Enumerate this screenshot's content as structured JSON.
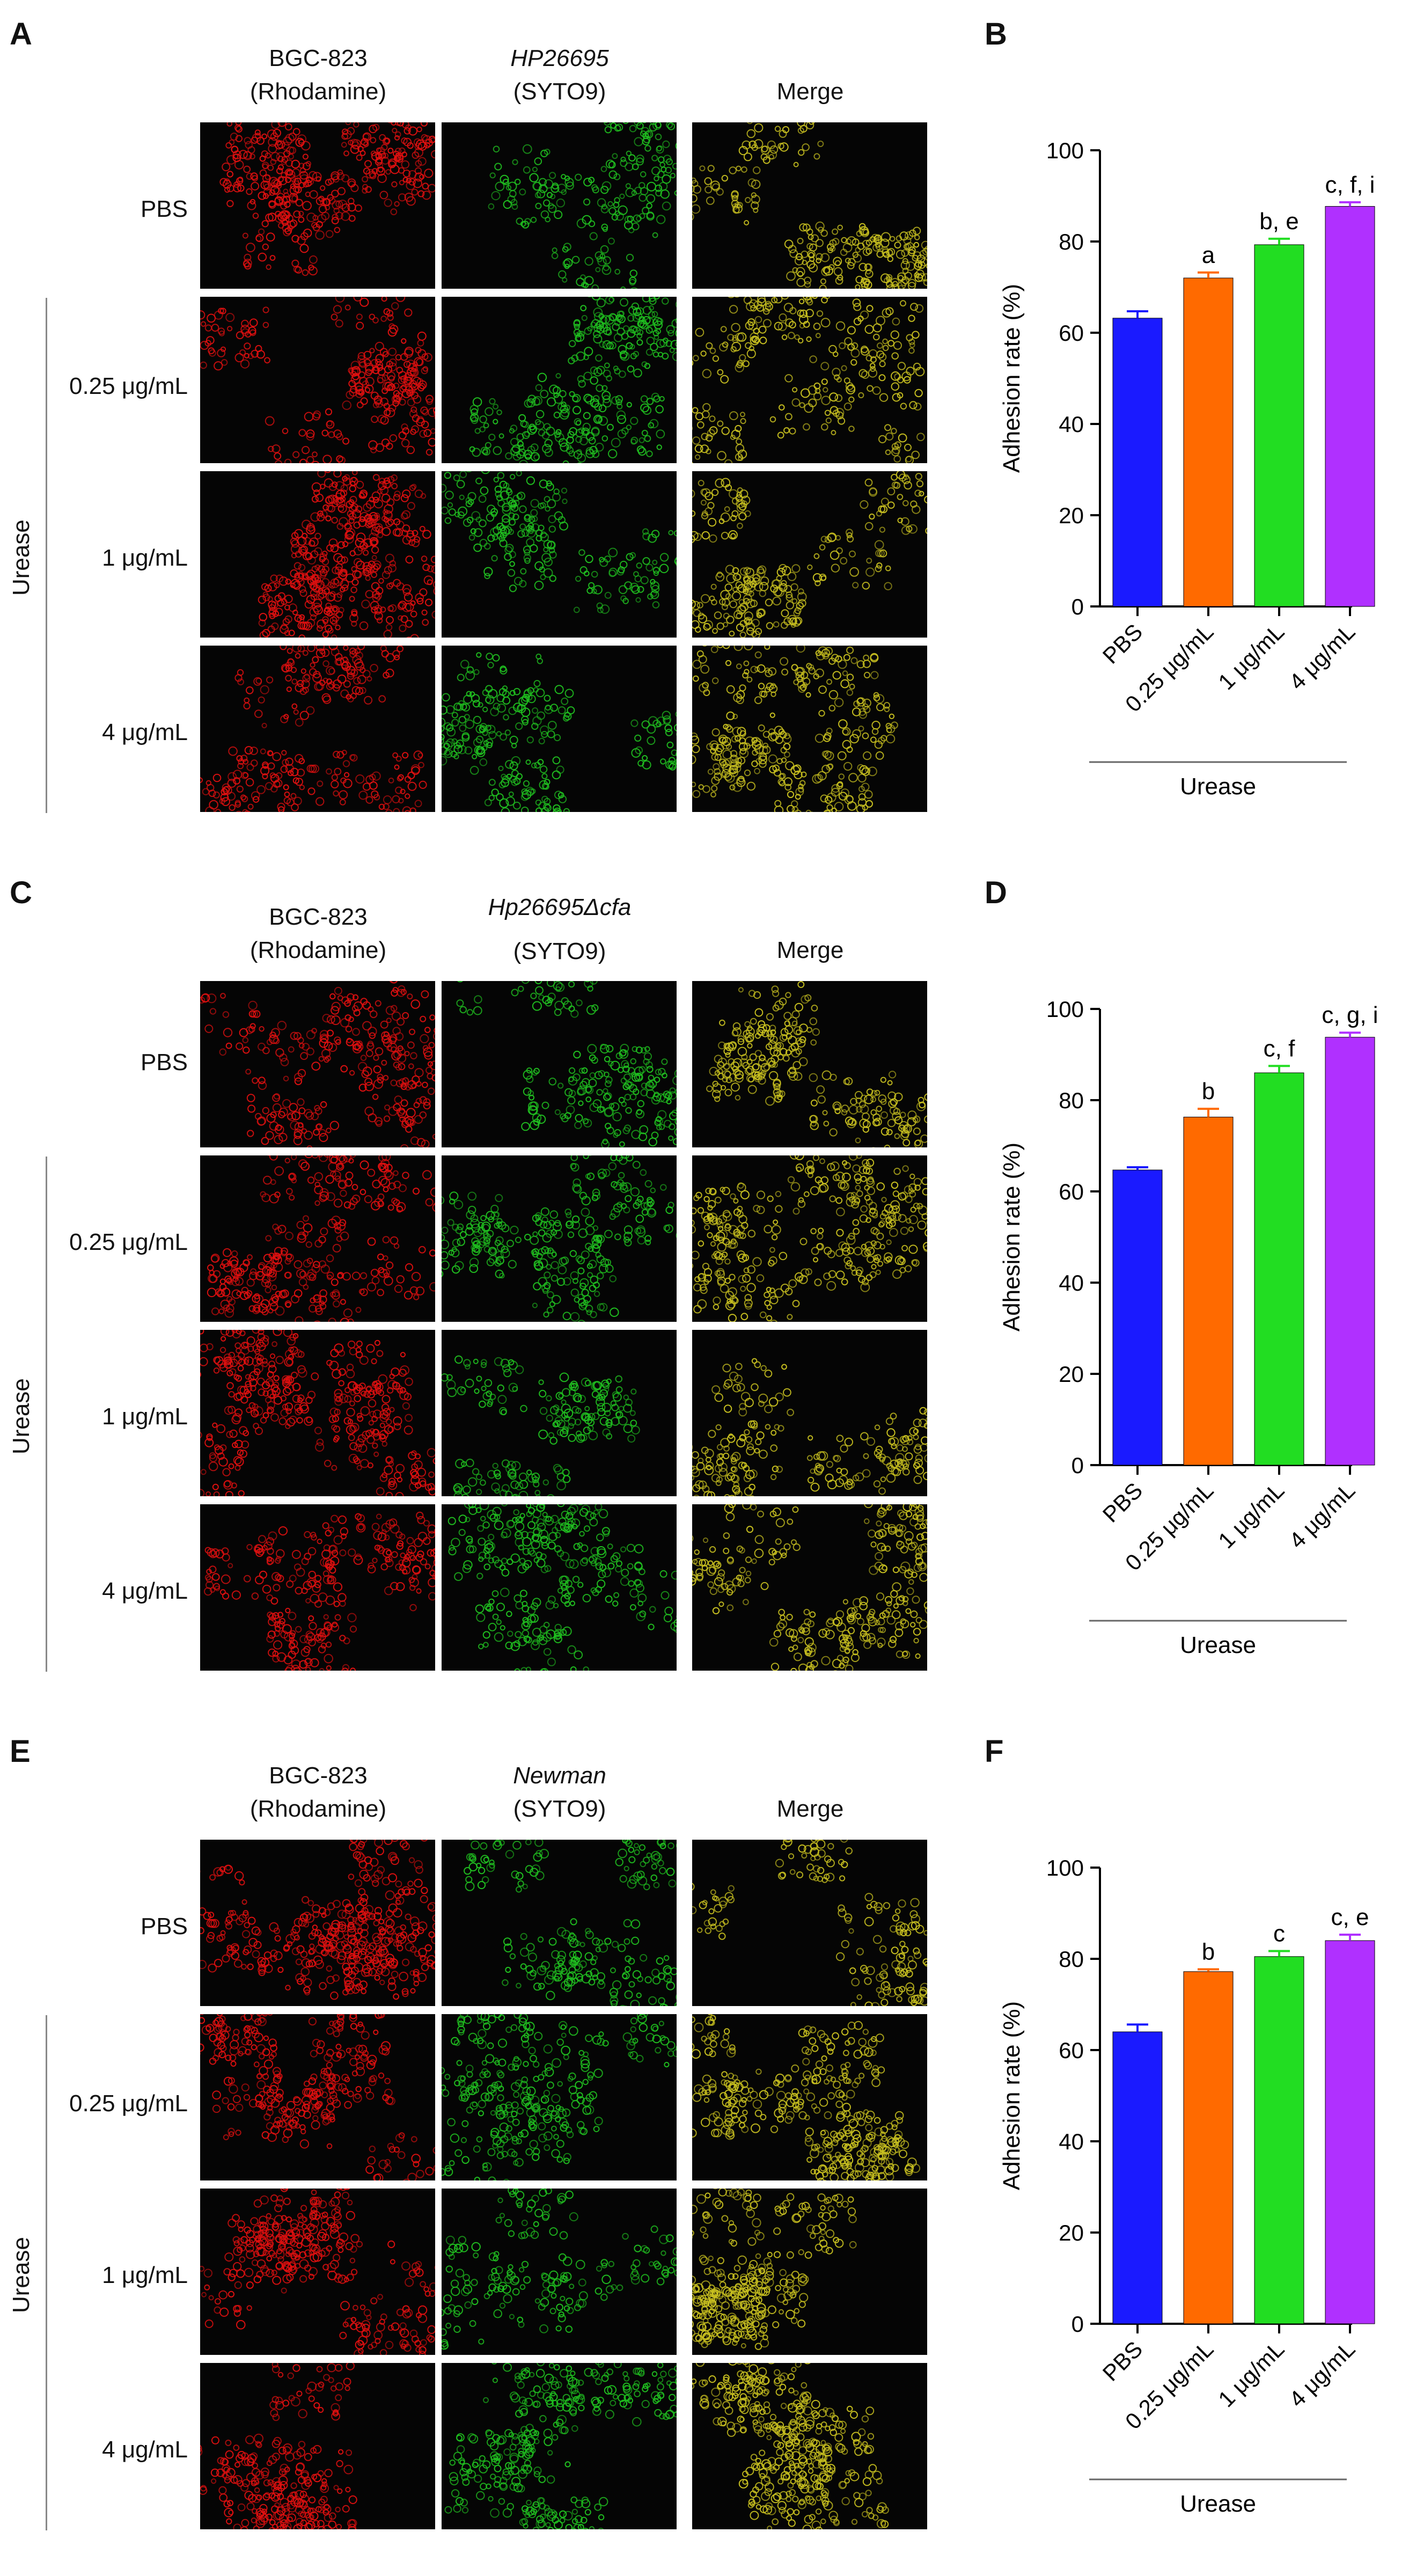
{
  "panels": [
    {
      "image_letter": "A",
      "chart_letter": "B",
      "col_headers": [
        {
          "line1": "BGC-823",
          "line2": "(Rhodamine)",
          "italic": false
        },
        {
          "line1": "HP26695",
          "line2": "(SYTO9)",
          "italic": true
        },
        {
          "line1": "Merge",
          "line2": "",
          "italic": false
        }
      ],
      "row_labels": [
        "PBS",
        "0.25 μg/mL",
        "1 μg/mL",
        "4 μg/mL"
      ],
      "group_label": "Urease"
    },
    {
      "image_letter": "C",
      "chart_letter": "D",
      "col_headers": [
        {
          "line1": "BGC-823",
          "line2": "(Rhodamine)",
          "italic": false
        },
        {
          "line1": "Hp26695Δcfa",
          "line2": "(SYTO9)",
          "italic": true
        },
        {
          "line1": "Merge",
          "line2": "",
          "italic": false
        }
      ],
      "row_labels": [
        "PBS",
        "0.25 μg/mL",
        "1 μg/mL",
        "4 μg/mL"
      ],
      "group_label": "Urease"
    },
    {
      "image_letter": "E",
      "chart_letter": "F",
      "col_headers": [
        {
          "line1": "BGC-823",
          "line2": "(Rhodamine)",
          "italic": false
        },
        {
          "line1": "Newman",
          "line2": "(SYTO9)",
          "italic": true
        },
        {
          "line1": "Merge",
          "line2": "",
          "italic": false
        }
      ],
      "row_labels": [
        "PBS",
        "0.25 μg/mL",
        "1 μg/mL",
        "4 μg/mL"
      ],
      "group_label": "Urease"
    }
  ],
  "colors": {
    "rhodamine": "#e01010",
    "syto9": "#20c020",
    "merge": "#c8c020",
    "bar_pbs": "#1a1aff",
    "bar_025": "#ff6a00",
    "bar_1": "#22dd22",
    "bar_4": "#b030ff"
  },
  "chart_data": [
    {
      "type": "bar",
      "categories": [
        "PBS",
        "0.25 μg/mL",
        "1 μg/mL",
        "4 μg/mL"
      ],
      "values": [
        63.2,
        72.0,
        79.3,
        87.7
      ],
      "errors": [
        1.5,
        1.2,
        1.3,
        0.9
      ],
      "annotations": [
        "",
        "a",
        "b, e",
        "c, f, i"
      ],
      "ylabel": "Adhesion rate (%)",
      "ylim": [
        0,
        100
      ],
      "yticks": [
        0,
        20,
        40,
        60,
        80,
        100
      ],
      "group_label": "Urease"
    },
    {
      "type": "bar",
      "categories": [
        "PBS",
        "0.25 μg/mL",
        "1 μg/mL",
        "4 μg/mL"
      ],
      "values": [
        64.7,
        76.3,
        86.0,
        93.8
      ],
      "errors": [
        0.6,
        1.8,
        1.5,
        1.0
      ],
      "annotations": [
        "",
        "b",
        "c, f",
        "c, g, i"
      ],
      "ylabel": "Adhesion rate (%)",
      "ylim": [
        0,
        100
      ],
      "yticks": [
        0,
        20,
        40,
        60,
        80,
        100
      ],
      "group_label": "Urease"
    },
    {
      "type": "bar",
      "categories": [
        "PBS",
        "0.25 μg/mL",
        "1 μg/mL",
        "4 μg/mL"
      ],
      "values": [
        64.0,
        77.2,
        80.5,
        84.0
      ],
      "errors": [
        1.6,
        0.5,
        1.2,
        1.3
      ],
      "annotations": [
        "",
        "b",
        "c",
        "c, e"
      ],
      "ylabel": "Adhesion rate (%)",
      "ylim": [
        0,
        100
      ],
      "yticks": [
        0,
        20,
        40,
        60,
        80,
        100
      ],
      "group_label": "Urease"
    }
  ]
}
